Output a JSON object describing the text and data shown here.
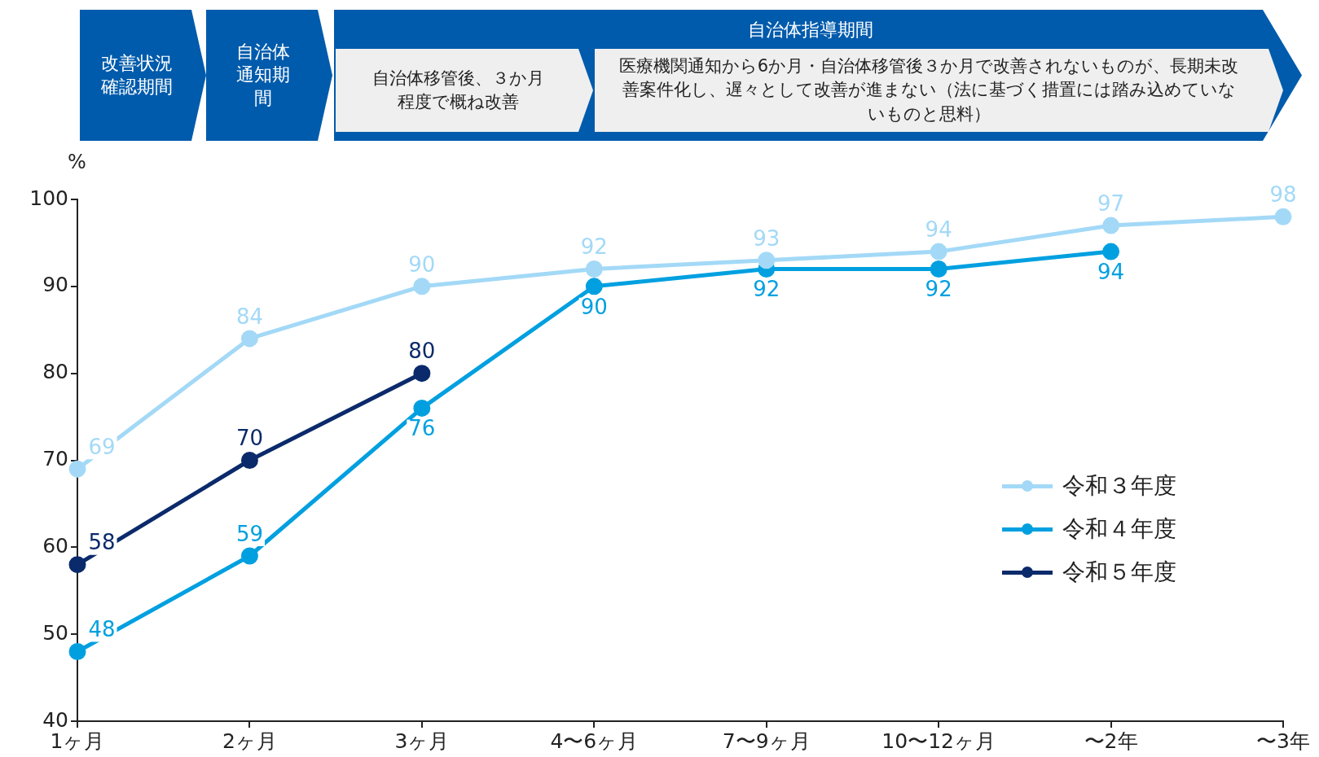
{
  "chart_data": {
    "type": "line",
    "ylabel": "%",
    "categories": [
      "1ヶ月",
      "2ヶ月",
      "3ヶ月",
      "4〜6ヶ月",
      "7〜9ヶ月",
      "10〜12ヶ月",
      "〜2年",
      "〜3年"
    ],
    "series": [
      {
        "name": "令和３年度",
        "color": "#a3d9f7",
        "values": [
          69,
          84,
          90,
          92,
          93,
          94,
          97,
          98
        ]
      },
      {
        "name": "令和４年度",
        "color": "#00a0e0",
        "values": [
          48,
          59,
          76,
          90,
          92,
          92,
          94,
          null
        ]
      },
      {
        "name": "令和５年度",
        "color": "#0b2a6b",
        "values": [
          58,
          70,
          80,
          null,
          null,
          null,
          null,
          null
        ]
      }
    ],
    "ylim": [
      40,
      100
    ],
    "yticks": [
      40,
      50,
      60,
      70,
      80,
      90,
      100
    ],
    "grid": false,
    "legend": "right",
    "marker": "circle",
    "line_style": "solid",
    "data_labels": true,
    "annotations": [
      "改善状況確認期間",
      "自治体通知期間",
      "自治体指導期間",
      "自治体移管後、３か月程度で概ね改善",
      "医療機関通知から6か月・自治体移管後３か月で改善されないものが、長期未改善案件化し、遅々として改善が進まない（法に基づく措置には踏み込めていないものと思料）"
    ]
  }
}
